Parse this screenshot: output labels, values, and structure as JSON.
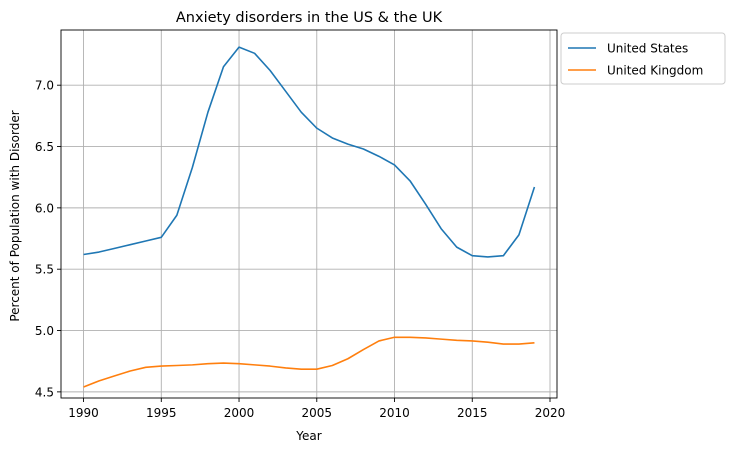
{
  "chart_data": {
    "type": "line",
    "title": "Anxiety disorders in the US & the UK",
    "xlabel": "Year",
    "ylabel": "Percent of Population with Disorder",
    "xlim": [
      1988.55,
      2020.45
    ],
    "ylim": [
      4.45,
      7.45
    ],
    "xticks": [
      1990,
      1995,
      2000,
      2005,
      2010,
      2015,
      2020
    ],
    "yticks": [
      4.5,
      5.0,
      5.5,
      6.0,
      6.5,
      7.0
    ],
    "grid": true,
    "legend_position": "outside upper right",
    "x": [
      1990,
      1991,
      1992,
      1993,
      1994,
      1995,
      1996,
      1997,
      1998,
      1999,
      2000,
      2001,
      2002,
      2003,
      2004,
      2005,
      2006,
      2007,
      2008,
      2009,
      2010,
      2011,
      2012,
      2013,
      2014,
      2015,
      2016,
      2017,
      2018,
      2019
    ],
    "series": [
      {
        "name": "United States",
        "color": "#1f77b4",
        "values": [
          5.62,
          5.64,
          5.67,
          5.7,
          5.73,
          5.76,
          5.94,
          6.33,
          6.78,
          7.15,
          7.31,
          7.26,
          7.12,
          6.95,
          6.78,
          6.65,
          6.57,
          6.52,
          6.48,
          6.42,
          6.35,
          6.22,
          6.03,
          5.83,
          5.68,
          5.61,
          5.6,
          5.61,
          5.78,
          6.17
        ]
      },
      {
        "name": "United Kingdom",
        "color": "#ff7f0e",
        "values": [
          4.54,
          4.59,
          4.63,
          4.67,
          4.7,
          4.71,
          4.715,
          4.72,
          4.73,
          4.735,
          4.73,
          4.72,
          4.71,
          4.695,
          4.685,
          4.685,
          4.715,
          4.77,
          4.845,
          4.915,
          4.945,
          4.945,
          4.94,
          4.93,
          4.92,
          4.915,
          4.905,
          4.89,
          4.89,
          4.9
        ]
      }
    ]
  }
}
